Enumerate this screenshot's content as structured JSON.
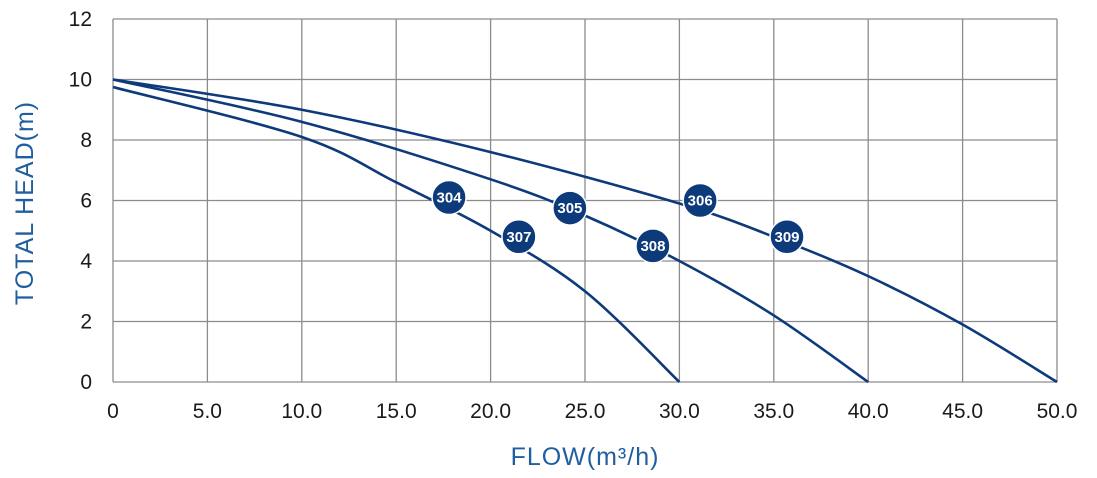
{
  "chart_data": {
    "type": "line",
    "title": "",
    "xlabel": "FLOW(m³/h)",
    "ylabel": "TOTAL HEAD(m)",
    "xlim": [
      0,
      50
    ],
    "ylim": [
      0,
      12
    ],
    "xticks": [
      0,
      5,
      10,
      15,
      20,
      25,
      30,
      35,
      40,
      45,
      50
    ],
    "xtick_labels": [
      "0",
      "5.0",
      "10.0",
      "15.0",
      "20.0",
      "25.0",
      "30.0",
      "35.0",
      "40.0",
      "45.0",
      "50.0"
    ],
    "yticks": [
      0,
      2,
      4,
      6,
      8,
      10,
      12
    ],
    "ytick_labels": [
      "0",
      "2",
      "4",
      "6",
      "8",
      "10",
      "12"
    ],
    "grid": true,
    "legend": "none",
    "colors": {
      "line": "#0d3a7a",
      "badge": "#0d3a7a",
      "grid": "#8c8c8c",
      "axis_title": "#1f5f9e"
    },
    "series": [
      {
        "x": [
          0,
          10,
          15,
          20,
          25,
          30
        ],
        "y": [
          9.75,
          8.1,
          6.6,
          5.0,
          3.0,
          0
        ]
      },
      {
        "x": [
          0,
          10,
          20,
          25,
          30,
          35,
          40
        ],
        "y": [
          10.0,
          8.6,
          6.7,
          5.5,
          4.0,
          2.2,
          0
        ]
      },
      {
        "x": [
          0,
          10,
          20,
          30,
          35,
          40,
          45,
          50
        ],
        "y": [
          10.0,
          9.0,
          7.6,
          5.9,
          4.8,
          3.5,
          1.9,
          0
        ]
      }
    ],
    "annotations": [
      {
        "text": "304",
        "x": 17.8,
        "y": 6.1
      },
      {
        "text": "307",
        "x": 21.5,
        "y": 4.8
      },
      {
        "text": "305",
        "x": 24.2,
        "y": 5.75
      },
      {
        "text": "308",
        "x": 28.6,
        "y": 4.5
      },
      {
        "text": "306",
        "x": 31.1,
        "y": 6.0
      },
      {
        "text": "309",
        "x": 35.7,
        "y": 4.8
      }
    ]
  }
}
